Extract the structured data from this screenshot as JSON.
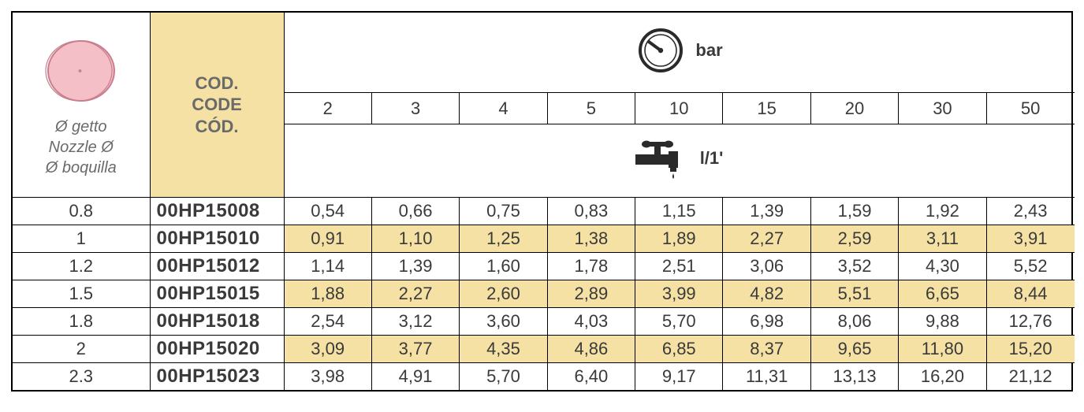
{
  "header": {
    "nozzle_labels": [
      "Ø getto",
      "Nozzle Ø",
      "Ø boquilla"
    ],
    "code_labels": [
      "COD.",
      "CODE",
      "CÓD."
    ],
    "bar_label": "bar",
    "flow_label": "l/1'",
    "pressure_values": [
      "2",
      "3",
      "4",
      "5",
      "10",
      "15",
      "20",
      "30",
      "50"
    ]
  },
  "colors": {
    "highlight_bg": "#f5e1a4",
    "disc_fill": "#f4bfc6",
    "disc_stroke": "#c97e8e",
    "border": "#000000",
    "text_muted": "#6a6a6a",
    "text": "#3a3a3a",
    "icon": "#2a2a2a"
  },
  "rows": [
    {
      "nozzle": "0.8",
      "code": "00HP15008",
      "highlight": false,
      "values": [
        "0,54",
        "0,66",
        "0,75",
        "0,83",
        "1,15",
        "1,39",
        "1,59",
        "1,92",
        "2,43"
      ]
    },
    {
      "nozzle": "1",
      "code": "00HP15010",
      "highlight": true,
      "values": [
        "0,91",
        "1,10",
        "1,25",
        "1,38",
        "1,89",
        "2,27",
        "2,59",
        "3,11",
        "3,91"
      ]
    },
    {
      "nozzle": "1.2",
      "code": "00HP15012",
      "highlight": false,
      "values": [
        "1,14",
        "1,39",
        "1,60",
        "1,78",
        "2,51",
        "3,06",
        "3,52",
        "4,30",
        "5,52"
      ]
    },
    {
      "nozzle": "1.5",
      "code": "00HP15015",
      "highlight": true,
      "values": [
        "1,88",
        "2,27",
        "2,60",
        "2,89",
        "3,99",
        "4,82",
        "5,51",
        "6,65",
        "8,44"
      ]
    },
    {
      "nozzle": "1.8",
      "code": "00HP15018",
      "highlight": false,
      "values": [
        "2,54",
        "3,12",
        "3,60",
        "4,03",
        "5,70",
        "6,98",
        "8,06",
        "9,88",
        "12,76"
      ]
    },
    {
      "nozzle": "2",
      "code": "00HP15020",
      "highlight": true,
      "values": [
        "3,09",
        "3,77",
        "4,35",
        "4,86",
        "6,85",
        "8,37",
        "9,65",
        "11,80",
        "15,20"
      ]
    },
    {
      "nozzle": "2.3",
      "code": "00HP15023",
      "highlight": false,
      "values": [
        "3,98",
        "4,91",
        "5,70",
        "6,40",
        "9,17",
        "11,31",
        "13,13",
        "16,20",
        "21,12"
      ]
    }
  ]
}
